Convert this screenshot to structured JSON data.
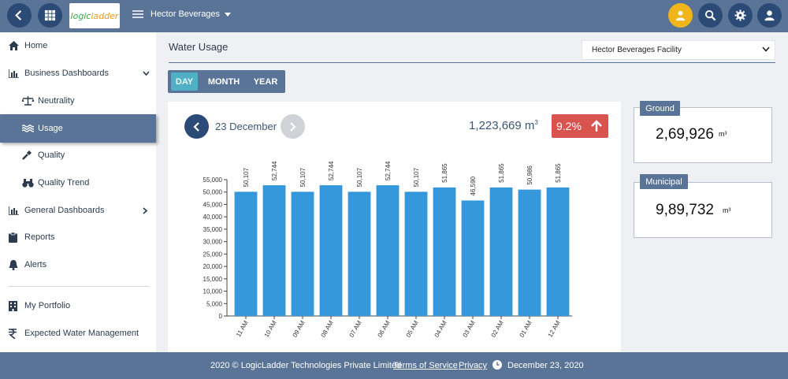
{
  "header": {
    "logo_part1": "logic",
    "logo_part2": "ladder",
    "company": "Hector Beverages",
    "icons": [
      "back-arrow-icon",
      "grid-apps-icon",
      "company-list-icon",
      "user-badge-icon",
      "search-icon",
      "gear-icon",
      "user-icon"
    ],
    "colors": {
      "topbar": "#5a7497",
      "button": "#2b4a75",
      "highlight": "#f0b51b"
    }
  },
  "sidebar": {
    "items": [
      {
        "label": "Home",
        "icon": "home-icon"
      },
      {
        "label": "Business Dashboards",
        "icon": "bar-chart-icon"
      },
      {
        "label": "Neutrality",
        "icon": "balance-scale-icon"
      },
      {
        "label": "Usage",
        "icon": "water-waves-icon",
        "active": true
      },
      {
        "label": "Quality",
        "icon": "eyedropper-icon"
      },
      {
        "label": "Quality Trend",
        "icon": "binoculars-icon"
      },
      {
        "label": "General Dashboards",
        "icon": "bar-chart-icon"
      },
      {
        "label": "Reports",
        "icon": "clipboard-icon"
      },
      {
        "label": "Alerts",
        "icon": "bell-icon"
      },
      {
        "label": "My Portfolio",
        "icon": "building-icon"
      },
      {
        "label": "Expected Water Management",
        "icon": "rupee-icon"
      }
    ]
  },
  "main": {
    "title": "Water Usage",
    "facility_select": "Hector Beverages Facility",
    "periods": [
      "DAY",
      "MONTH",
      "YEAR"
    ],
    "selected_period": "DAY",
    "date": "23 December",
    "total_value": "1,223,669 m",
    "total_unit_sup": "3",
    "change": "9.2%",
    "change_color": "#d9534f"
  },
  "breakdown": [
    {
      "label": "Ground",
      "value": "2,69,926",
      "unit": "m³"
    },
    {
      "label": "Municipal",
      "value": "9,89,732",
      "unit": "m³"
    }
  ],
  "chart_data": {
    "type": "bar",
    "categories": [
      "11 AM",
      "10 AM",
      "09 AM",
      "08 AM",
      "07 AM",
      "06 AM",
      "05 AM",
      "04 AM",
      "03 AM",
      "02 AM",
      "01 AM",
      "12 AM"
    ],
    "values": [
      50107,
      52744,
      50107,
      52744,
      50107,
      52744,
      50107,
      51865,
      46590,
      51865,
      50986,
      51865
    ],
    "data_labels": [
      "50,107",
      "52,744",
      "50,107",
      "52,744",
      "50,107",
      "52,744",
      "50,107",
      "51,865",
      "46,590",
      "51,865",
      "50,986",
      "51,865"
    ],
    "ylim": [
      0,
      55000
    ],
    "yticks": [
      0,
      5000,
      10000,
      15000,
      20000,
      25000,
      30000,
      35000,
      40000,
      45000,
      50000,
      55000
    ],
    "ytick_labels": [
      "0",
      "5,000",
      "10,000",
      "15,000",
      "20,000",
      "25,000",
      "30,000",
      "35,000",
      "40,000",
      "45,000",
      "50,000",
      "55,000"
    ],
    "bar_color": "#3598dc",
    "grid": false
  },
  "footer": {
    "copyright": "2020 © LogicLadder Technologies Private Limited",
    "terms": "Terms of Service",
    "privacy": "Privacy",
    "date": "December 23, 2020"
  }
}
